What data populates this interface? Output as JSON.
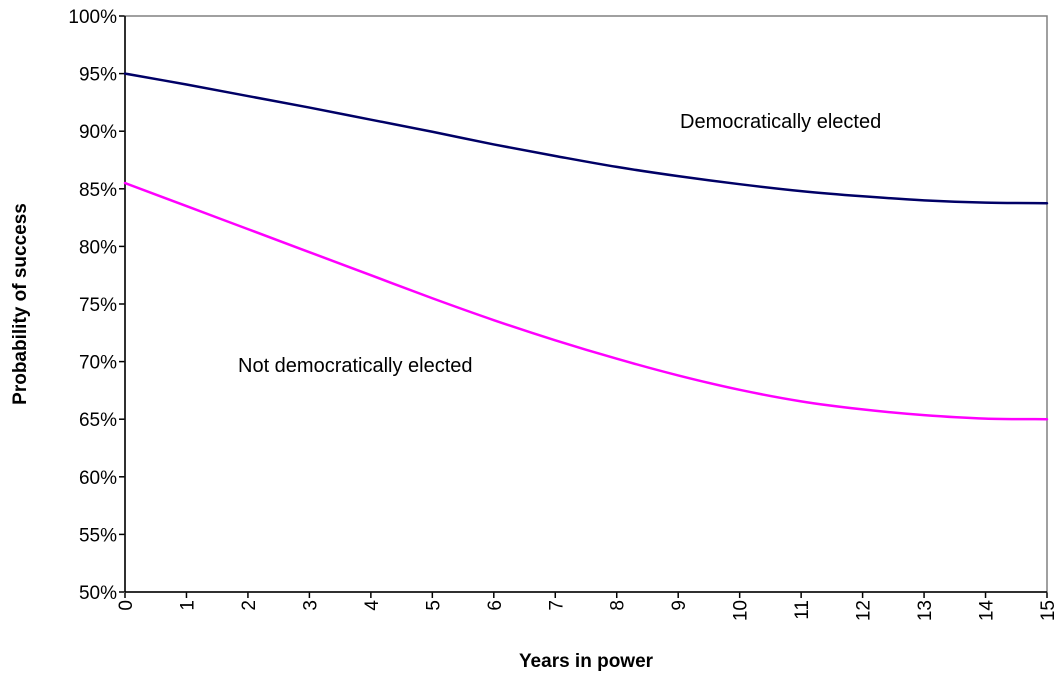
{
  "chart_data": {
    "type": "line",
    "title": "",
    "xlabel": "Years in power",
    "ylabel": "Probability of success",
    "x": [
      0,
      1,
      2,
      3,
      4,
      5,
      6,
      7,
      8,
      9,
      10,
      11,
      12,
      13,
      14,
      15
    ],
    "x_tick_labels": [
      "0",
      "1",
      "2",
      "3",
      "4",
      "5",
      "6",
      "7",
      "8",
      "9",
      "10",
      "11",
      "12",
      "13",
      "14",
      "15"
    ],
    "y_tick_labels": [
      "100%",
      "95%",
      "90%",
      "85%",
      "80%",
      "75%",
      "70%",
      "65%",
      "60%",
      "55%",
      "50%"
    ],
    "xlim": [
      0,
      15
    ],
    "ylim": [
      0.5,
      1.0
    ],
    "grid": false,
    "legend": "none",
    "series": [
      {
        "name": "Democratically elected",
        "color": "#000066",
        "values": [
          0.95,
          0.9405,
          0.9305,
          0.9205,
          0.91,
          0.8995,
          0.8885,
          0.8785,
          0.869,
          0.861,
          0.854,
          0.848,
          0.8435,
          0.84,
          0.838,
          0.8375
        ]
      },
      {
        "name": "Not democratically elected",
        "color": "#ff00ff",
        "values": [
          0.855,
          0.835,
          0.815,
          0.795,
          0.775,
          0.755,
          0.736,
          0.7185,
          0.7025,
          0.688,
          0.6755,
          0.6655,
          0.6585,
          0.6535,
          0.6505,
          0.65
        ]
      }
    ],
    "annotations": [
      {
        "text": "Democratically elected",
        "series": 0
      },
      {
        "text": "Not democratically elected",
        "series": 1
      }
    ]
  }
}
